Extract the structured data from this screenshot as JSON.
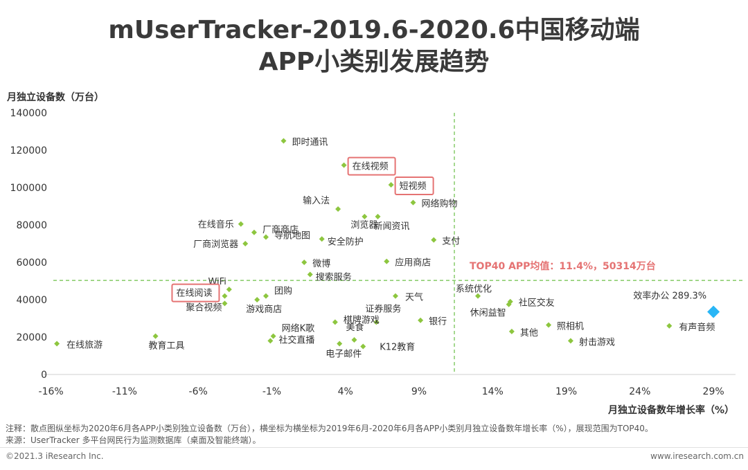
{
  "title_line1": "mUserTracker-2019.6-2020.6中国移动端",
  "title_line2": "APP小类别发展趋势",
  "notes": {
    "line1": "注释：散点图纵坐标为2020年6月各APP小类别独立设备数（万台），横坐标为横坐标为2019年6月-2020年6月各APP小类别月独立设备数年增长率（%），展现范围为TOP40。",
    "line2": "来源：UserTracker 多平台网民行为监测数据库（桌面及智能终端）。"
  },
  "footer": {
    "copyright": "©2021.3 iResearch Inc.",
    "website": "www.iresearch.com.cn"
  },
  "chart_data": {
    "type": "scatter",
    "ylabel": "月独立设备数（万台）",
    "xlabel": "月独立设备数年增长率（%）",
    "xlim": [
      -16.5,
      30.5
    ],
    "ylim": [
      0,
      140000
    ],
    "xticks": [
      -16,
      -11,
      -6,
      -1,
      4,
      9,
      14,
      19,
      24,
      29
    ],
    "xtick_labels": [
      "-16%",
      "-11%",
      "-6%",
      "-1%",
      "4%",
      "9%",
      "14%",
      "19%",
      "24%",
      "29%"
    ],
    "yticks": [
      0,
      20000,
      40000,
      60000,
      80000,
      100000,
      120000,
      140000
    ],
    "ytick_labels": [
      "0",
      "20000",
      "40000",
      "60000",
      "80000",
      "100000",
      "120000",
      "140000"
    ],
    "grid": false,
    "average": {
      "x": 11.4,
      "y": 50314,
      "label": "TOP40 APP均值：11.4%，50314万台"
    },
    "colors": {
      "point": "#8dc63f",
      "outlier": "#29b6f6",
      "average_line": "#6abf45",
      "highlight_box": "#e57373",
      "average_label": "#e57373",
      "axis": "#cfcfcf",
      "text": "#333333"
    },
    "points": [
      {
        "name": "即时通讯",
        "x": -0.2,
        "y": 125000
      },
      {
        "name": "在线视频",
        "x": 3.9,
        "y": 112000,
        "highlight": true
      },
      {
        "name": "短视频",
        "x": 7.1,
        "y": 101500,
        "highlight": true
      },
      {
        "name": "输入法",
        "x": 3.5,
        "y": 88500
      },
      {
        "name": "网络购物",
        "x": 8.6,
        "y": 92000
      },
      {
        "name": "新闻资讯",
        "x": 6.2,
        "y": 84500
      },
      {
        "name": "浏览器",
        "x": 5.3,
        "y": 84500
      },
      {
        "name": "在线音乐",
        "x": -3.1,
        "y": 80500
      },
      {
        "name": "厂商商店",
        "x": -2.2,
        "y": 76000
      },
      {
        "name": "导航地图",
        "x": -1.4,
        "y": 73500
      },
      {
        "name": "安全防护",
        "x": 2.4,
        "y": 72500
      },
      {
        "name": "厂商浏览器",
        "x": -2.8,
        "y": 70000
      },
      {
        "name": "支付",
        "x": 10.0,
        "y": 72000
      },
      {
        "name": "微博",
        "x": 1.2,
        "y": 60000
      },
      {
        "name": "应用商店",
        "x": 6.8,
        "y": 60500
      },
      {
        "name": "搜索服务",
        "x": 1.6,
        "y": 53500
      },
      {
        "name": "WiFi",
        "x": -3.9,
        "y": 45500
      },
      {
        "name": "系统优化",
        "x": 13.0,
        "y": 42000
      },
      {
        "name": "在线阅读",
        "x": -4.2,
        "y": 42000,
        "highlight": true
      },
      {
        "name": "团购",
        "x": -1.4,
        "y": 42000
      },
      {
        "name": "天气",
        "x": 7.4,
        "y": 42000
      },
      {
        "name": "聚合视频",
        "x": -4.2,
        "y": 38000
      },
      {
        "name": "游戏商店",
        "x": -2.0,
        "y": 40000
      },
      {
        "name": "社区交友",
        "x": 15.2,
        "y": 39000
      },
      {
        "name": "休闲益智",
        "x": 15.1,
        "y": 37500
      },
      {
        "name": "证券服务",
        "x": 6.1,
        "y": 28000
      },
      {
        "name": "棋牌游戏",
        "x": 3.3,
        "y": 28000
      },
      {
        "name": "银行",
        "x": 9.1,
        "y": 29000
      },
      {
        "name": "照相机",
        "x": 17.8,
        "y": 26500
      },
      {
        "name": "效率办公",
        "x": 29.0,
        "y": 33500,
        "outlier": true,
        "value_label": "289.3%"
      },
      {
        "name": "有声音频",
        "x": 26.0,
        "y": 26000
      },
      {
        "name": "其他",
        "x": 15.3,
        "y": 23000
      },
      {
        "name": "射击游戏",
        "x": 19.3,
        "y": 18000
      },
      {
        "name": "网络K歌",
        "x": -0.9,
        "y": 20500
      },
      {
        "name": "社交直播",
        "x": -1.1,
        "y": 18000
      },
      {
        "name": "美食",
        "x": 4.6,
        "y": 18500
      },
      {
        "name": "电子邮件",
        "x": 3.6,
        "y": 16500
      },
      {
        "name": "K12教育",
        "x": 5.2,
        "y": 15000
      },
      {
        "name": "在线旅游",
        "x": -15.6,
        "y": 16500
      },
      {
        "name": "教育工具",
        "x": -8.9,
        "y": 20500
      }
    ]
  }
}
